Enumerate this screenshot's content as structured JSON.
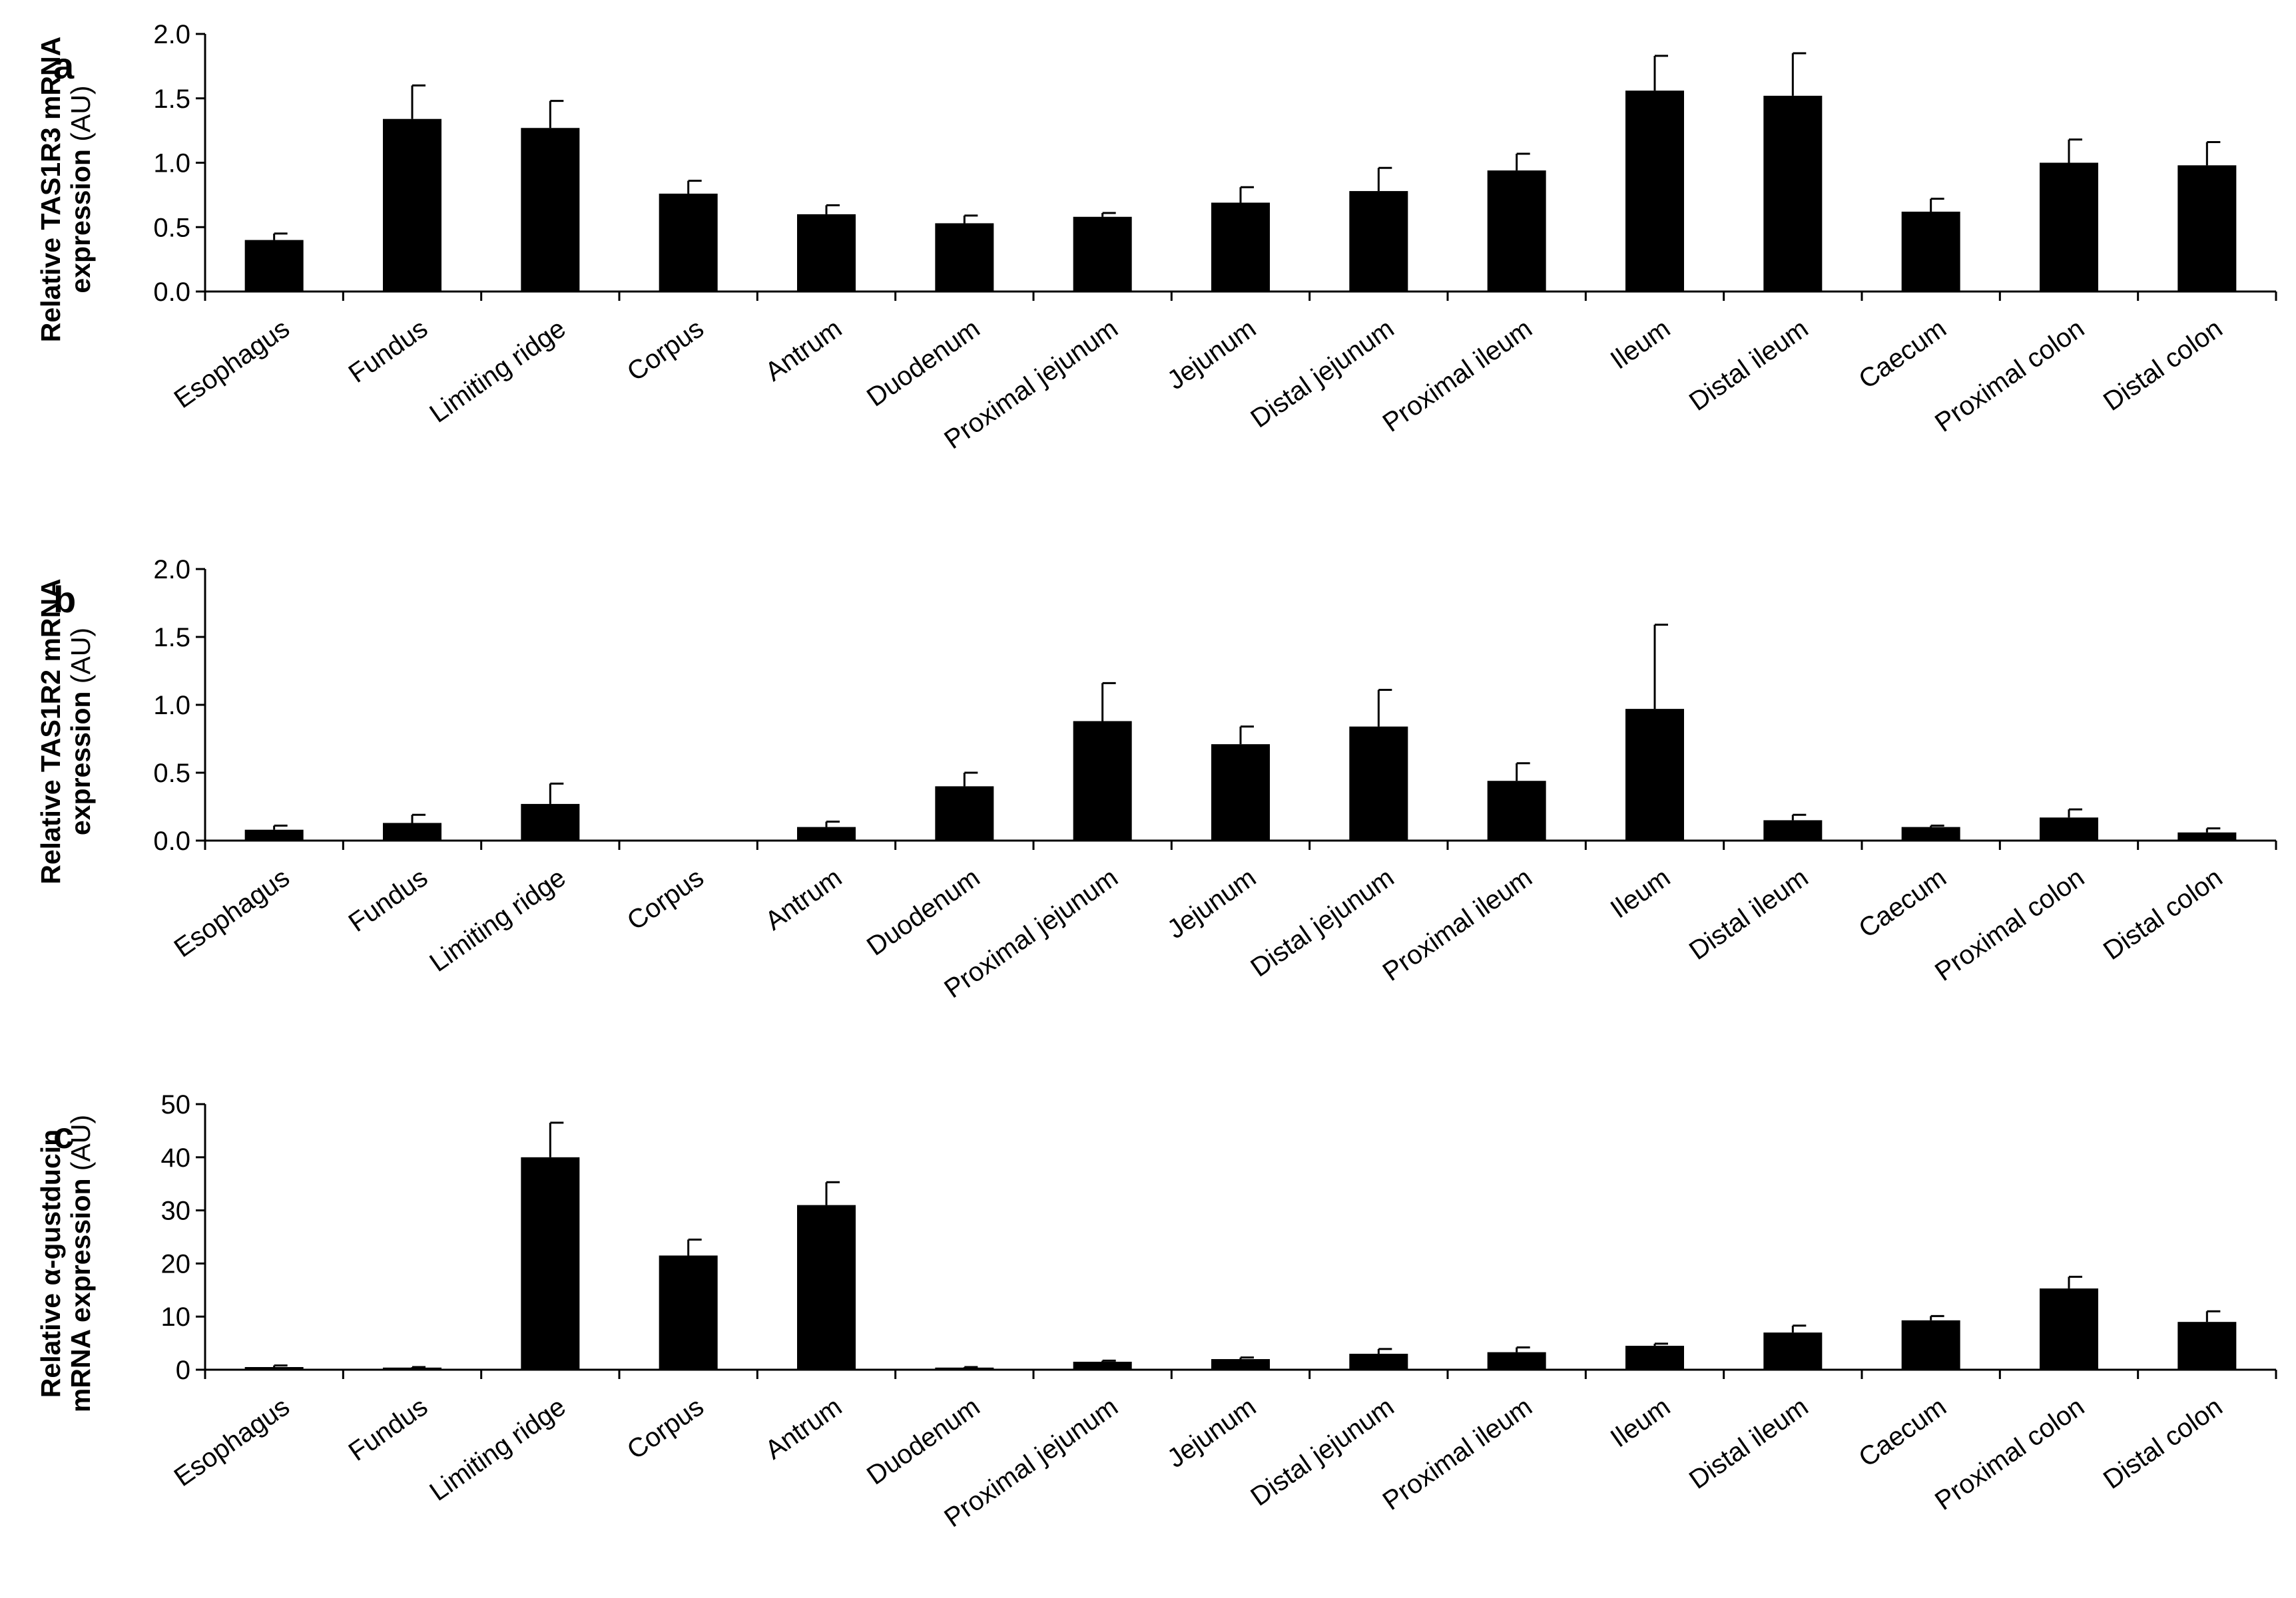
{
  "colors": {
    "bar": "#000000",
    "axis": "#000000",
    "background": "#ffffff"
  },
  "chart_data": [
    {
      "type": "bar",
      "panel": "a",
      "ylabel_line1_bold": "Relative TAS1R3 mRNA",
      "ylabel_line2_bold": "expression",
      "ylabel_line2_normal": " (AU)",
      "ylim": [
        0,
        2.0
      ],
      "yticks": [
        "0.0",
        "0.5",
        "1.0",
        "1.5",
        "2.0"
      ],
      "ytick_values": [
        0,
        0.5,
        1.0,
        1.5,
        2.0
      ],
      "categories": [
        "Esophagus",
        "Fundus",
        "Limiting ridge",
        "Corpus",
        "Antrum",
        "Duodenum",
        "Proximal jejunum",
        "Jejunum",
        "Distal jejunum",
        "Proximal ileum",
        "Ileum",
        "Distal ileum",
        "Caecum",
        "Proximal colon",
        "Distal colon"
      ],
      "values": [
        0.4,
        1.34,
        1.27,
        0.76,
        0.6,
        0.53,
        0.58,
        0.69,
        0.78,
        0.94,
        1.56,
        1.52,
        0.62,
        1.0,
        0.98
      ],
      "errors": [
        0.05,
        0.26,
        0.21,
        0.1,
        0.07,
        0.06,
        0.03,
        0.12,
        0.18,
        0.13,
        0.27,
        0.33,
        0.1,
        0.18,
        0.18
      ]
    },
    {
      "type": "bar",
      "panel": "b",
      "ylabel_line1_bold": "Relative TAS1R2 mRNA",
      "ylabel_line2_bold": "expression",
      "ylabel_line2_normal": " (AU)",
      "ylim": [
        0,
        2.0
      ],
      "yticks": [
        "0.0",
        "0.5",
        "1.0",
        "1.5",
        "2.0"
      ],
      "ytick_values": [
        0,
        0.5,
        1.0,
        1.5,
        2.0
      ],
      "categories": [
        "Esophagus",
        "Fundus",
        "Limiting ridge",
        "Corpus",
        "Antrum",
        "Duodenum",
        "Proximal jejunum",
        "Jejunum",
        "Distal jejunum",
        "Proximal ileum",
        "Ileum",
        "Distal ileum",
        "Caecum",
        "Proximal colon",
        "Distal colon"
      ],
      "values": [
        0.08,
        0.13,
        0.27,
        0.0,
        0.1,
        0.4,
        0.88,
        0.71,
        0.84,
        0.44,
        0.97,
        0.15,
        0.1,
        0.17,
        0.06
      ],
      "errors": [
        0.03,
        0.06,
        0.15,
        0.0,
        0.04,
        0.1,
        0.28,
        0.13,
        0.27,
        0.13,
        0.62,
        0.04,
        0.01,
        0.06,
        0.03
      ]
    },
    {
      "type": "bar",
      "panel": "c",
      "ylabel_line1_bold": "Relative α-gustducin",
      "ylabel_line2_bold": "mRNA expression",
      "ylabel_line2_normal": " (AU)",
      "ylim": [
        0,
        50
      ],
      "yticks": [
        "0",
        "10",
        "20",
        "30",
        "40",
        "50"
      ],
      "ytick_values": [
        0,
        10,
        20,
        30,
        40,
        50
      ],
      "categories": [
        "Esophagus",
        "Fundus",
        "Limiting ridge",
        "Corpus",
        "Antrum",
        "Duodenum",
        "Proximal jejunum",
        "Jejunum",
        "Distal jejunum",
        "Proximal ileum",
        "Ileum",
        "Distal ileum",
        "Caecum",
        "Proximal colon",
        "Distal colon"
      ],
      "values": [
        0.5,
        0.4,
        40.0,
        21.5,
        31.0,
        0.4,
        1.5,
        2.0,
        3.0,
        3.3,
        4.5,
        7.0,
        9.3,
        15.3,
        9.0
      ],
      "errors": [
        0.3,
        0.1,
        6.5,
        3.0,
        4.3,
        0.1,
        0.2,
        0.3,
        0.9,
        0.9,
        0.4,
        1.3,
        0.8,
        2.2,
        2.0
      ]
    }
  ]
}
